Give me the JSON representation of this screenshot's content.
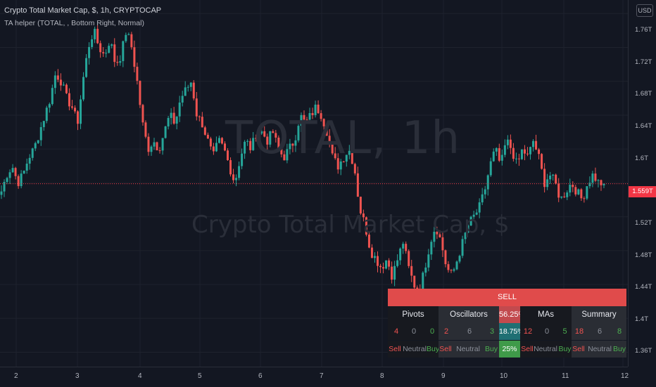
{
  "legend": {
    "title": "Crypto Total Market Cap, $, 1h, CRYPTOCAP",
    "indicator": "TA helper (TOTAL, , Bottom Right, Normal)"
  },
  "watermark": {
    "symbol": "TOTAL, 1h",
    "description": "Crypto Total Market Cap, $"
  },
  "price_axis": {
    "currency": "USD",
    "ticks": [
      "1.76T",
      "1.72T",
      "1.68T",
      "1.64T",
      "1.6T",
      "1.56T",
      "1.52T",
      "1.48T",
      "1.44T",
      "1.4T",
      "1.36T"
    ],
    "last_price": "1.559T"
  },
  "time_axis": {
    "ticks": [
      "2",
      "3",
      "4",
      "5",
      "6",
      "7",
      "8",
      "9",
      "10",
      "11",
      "12"
    ]
  },
  "ta_table": {
    "signal": "SELL",
    "groups": [
      {
        "name": "Pivots",
        "pct": "",
        "sell": "4",
        "neutral": "0",
        "buy": "0"
      },
      {
        "name": "Oscillators",
        "pct": "56.25%",
        "sell": "2",
        "neutral": "6",
        "buy": "3"
      },
      {
        "name": "MAs",
        "pct": "",
        "sell": "12",
        "neutral": "0",
        "buy": "5"
      },
      {
        "name": "Summary",
        "pct": "",
        "sell": "18",
        "neutral": "6",
        "buy": "8"
      }
    ],
    "pct_row2": "18.75%",
    "pct_row3": "25%",
    "labels": {
      "sell": "Sell",
      "neutral": "Neutral",
      "buy": "Buy"
    }
  },
  "colors": {
    "up": "#26a69a",
    "down": "#ef5350",
    "background": "#131722",
    "signal_sell": "#e04b4b"
  },
  "chart_data": {
    "type": "candlestick",
    "symbol": "TOTAL",
    "interval": "1h",
    "ylim": [
      1.343,
      1.776
    ],
    "close_path": [
      [
        1.55,
        1.57,
        1.58,
        1.56,
        1.57,
        1.59,
        1.6,
        1.62,
        1.64,
        1.66,
        1.69,
        1.68,
        1.66,
        1.65,
        1.63,
        1.68,
        1.72,
        1.74,
        1.72,
        1.71,
        1.73,
        1.7,
        1.71,
        1.74,
        1.72
      ],
      [
        1.68,
        1.63,
        1.6,
        1.61,
        1.6,
        1.62,
        1.64,
        1.63,
        1.66,
        1.67,
        1.68,
        1.64,
        1.63,
        1.61,
        1.59,
        1.61,
        1.6,
        1.58,
        1.56,
        1.59,
        1.61,
        1.6,
        1.62,
        1.62,
        1.61
      ],
      [
        1.62,
        1.6,
        1.59,
        1.6,
        1.61,
        1.64,
        1.63,
        1.64,
        1.65,
        1.64,
        1.62,
        1.59,
        1.58,
        1.59,
        1.6,
        1.58,
        1.53,
        1.51,
        1.48,
        1.47,
        1.46,
        1.47,
        1.45,
        1.47,
        1.49
      ],
      [
        1.46,
        1.44,
        1.43,
        1.46,
        1.49,
        1.51,
        1.49,
        1.46,
        1.45,
        1.47,
        1.49,
        1.51,
        1.52,
        1.53,
        1.55,
        1.58,
        1.6,
        1.58,
        1.61,
        1.6,
        1.58,
        1.6,
        1.59,
        1.61,
        1.59
      ],
      [
        1.56,
        1.57,
        1.56,
        1.54,
        1.55,
        1.56,
        1.55,
        1.54,
        1.56,
        1.57,
        1.56,
        1.559
      ]
    ]
  }
}
